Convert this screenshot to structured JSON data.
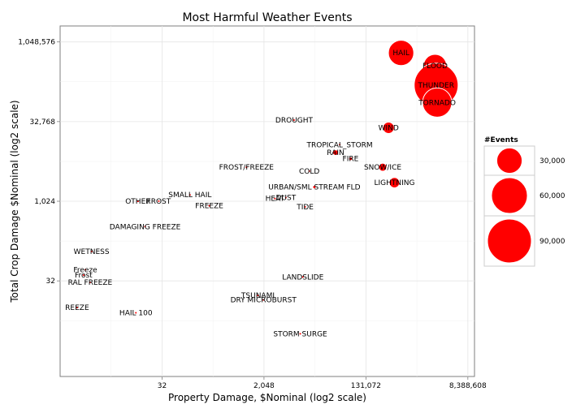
{
  "chart_data": {
    "type": "scatter",
    "title": "Most Harmful Weather Events",
    "xlabel": "Property Damage, $Nominal (log2 scale)",
    "ylabel": "Total Crop Damage $Nominal (log2 scale)",
    "x_scale": "log2",
    "y_scale": "log2",
    "xlim": [
      0.5,
      11000000
    ],
    "ylim": [
      0.5,
      2100000
    ],
    "x_ticks": [
      {
        "value": 32,
        "label": "32"
      },
      {
        "value": 2048,
        "label": "2,048"
      },
      {
        "value": 131072,
        "label": "131,072"
      },
      {
        "value": 8388608,
        "label": "8,388,608"
      }
    ],
    "y_ticks": [
      {
        "value": 32,
        "label": "32"
      },
      {
        "value": 1024,
        "label": "1,024"
      },
      {
        "value": 32768,
        "label": "32,768"
      },
      {
        "value": 1048576,
        "label": "1,048,576"
      }
    ],
    "grid": true,
    "point_color": "#ff0000",
    "legend": {
      "title": "#Events",
      "position": "right",
      "entries": [
        {
          "label": "30,000",
          "value": 30000
        },
        {
          "label": "60,000",
          "value": 60000
        },
        {
          "label": "90,000",
          "value": 90000
        }
      ]
    },
    "points": [
      {
        "label": "HAIL",
        "x": 550000,
        "y": 650000,
        "events": 30000
      },
      {
        "label": "FLOOD",
        "x": 2200000,
        "y": 370000,
        "events": 25000
      },
      {
        "label": "THUNDER",
        "x": 2300000,
        "y": 160000,
        "events": 90000
      },
      {
        "label": "TORNADO",
        "x": 2400000,
        "y": 75000,
        "events": 40000
      },
      {
        "label": "WIND",
        "x": 330000,
        "y": 25000,
        "events": 6000
      },
      {
        "label": "DROUGHT",
        "x": 7000,
        "y": 35000,
        "events": 0
      },
      {
        "label": "TROPICAL_STORM",
        "x": 45000,
        "y": 12000,
        "events": 0
      },
      {
        "label": "RAIN",
        "x": 38000,
        "y": 8500,
        "events": 1500
      },
      {
        "label": "FIRE",
        "x": 70000,
        "y": 6500,
        "events": 600
      },
      {
        "label": "SNOW/ICE",
        "x": 260000,
        "y": 4500,
        "events": 3000
      },
      {
        "label": "LIGHTNING",
        "x": 420000,
        "y": 2300,
        "events": 5000
      },
      {
        "label": "FROST/FREEZE",
        "x": 1000,
        "y": 4500,
        "events": 0
      },
      {
        "label": "COLD",
        "x": 13000,
        "y": 3800,
        "events": 0
      },
      {
        "label": "URBAN/SML STREAM FLD",
        "x": 16000,
        "y": 1900,
        "events": 300
      },
      {
        "label": "HEAT",
        "x": 3200,
        "y": 1150,
        "events": 0
      },
      {
        "label": "DUST",
        "x": 5000,
        "y": 1200,
        "events": 0
      },
      {
        "label": "TIDE",
        "x": 11000,
        "y": 800,
        "events": 0
      },
      {
        "label": "SMALL HAIL",
        "x": 100,
        "y": 1350,
        "events": 0
      },
      {
        "label": "OTHER",
        "x": 12,
        "y": 1020,
        "events": 0
      },
      {
        "label": "FROST",
        "x": 28,
        "y": 1030,
        "events": 0
      },
      {
        "label": "FREEZE",
        "x": 220,
        "y": 840,
        "events": 0
      },
      {
        "label": "DAMAGING FREEZE",
        "x": 16,
        "y": 340,
        "events": 0
      },
      {
        "label": "WETNESS",
        "x": 1.8,
        "y": 115,
        "events": 0
      },
      {
        "label": "Freeze",
        "x": 1.4,
        "y": 52,
        "events": 0
      },
      {
        "label": "Frost",
        "x": 1.3,
        "y": 41,
        "events": 0
      },
      {
        "label": "RAL FREEZE",
        "x": 1.7,
        "y": 30,
        "events": 0
      },
      {
        "label": "REEZE",
        "x": 1.0,
        "y": 10,
        "events": 0
      },
      {
        "label": "HAIL 100",
        "x": 11,
        "y": 8,
        "events": 0
      },
      {
        "label": "LANDSLIDE",
        "x": 10000,
        "y": 38,
        "events": 0
      },
      {
        "label": "TSUNAMI",
        "x": 1600,
        "y": 17,
        "events": 0
      },
      {
        "label": "DRY MICROBURST",
        "x": 2000,
        "y": 14,
        "events": 0
      },
      {
        "label": "STORM SURGE",
        "x": 9000,
        "y": 3.2,
        "events": 0
      }
    ]
  }
}
